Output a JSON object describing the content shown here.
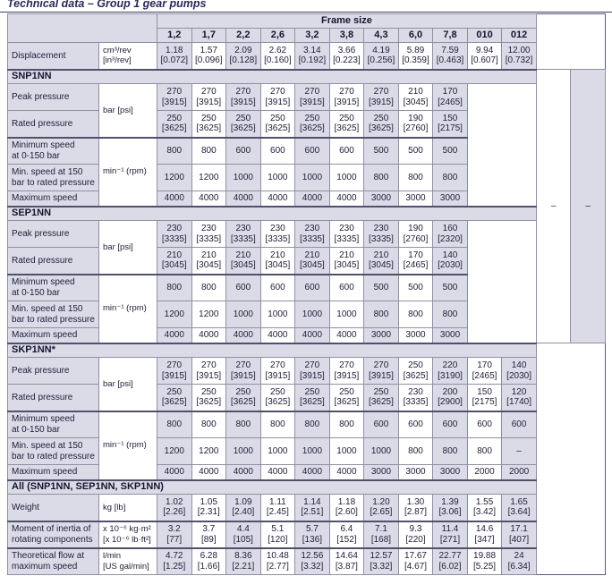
{
  "title": "Technical data – Group 1 gear pumps",
  "table": {
    "frame_size_label": "Frame size",
    "columns": [
      "1,2",
      "1,7",
      "2,2",
      "2,6",
      "3,2",
      "3,8",
      "4,3",
      "6,0",
      "7,8",
      "010",
      "012"
    ],
    "na_value": "–",
    "na_rowspan": 12,
    "displacement": {
      "label": "Displacement",
      "unit": "cm³/rev\n[in³/rev]",
      "values": [
        "1.18\n[0.072]",
        "1.57\n[0.096]",
        "2.09\n[0.128]",
        "2.62\n[0.160]",
        "3.14\n[0.192]",
        "3.66\n[0.223]",
        "4.19\n[0.256]",
        "5.89\n[0.359]",
        "7.59\n[0.463]",
        "9.94\n[0.607]",
        "12.00\n[0.732]"
      ]
    },
    "sections": [
      {
        "name": "SNP1NN",
        "spans_full": false,
        "attach_na": true,
        "rows": [
          {
            "label": "Peak pressure",
            "unit": "bar [psi]",
            "unit_rows": 2,
            "values": [
              "270\n[3915]",
              "270\n[3915]",
              "270\n[3915]",
              "270\n[3915]",
              "270\n[3915]",
              "270\n[3915]",
              "270\n[3915]",
              "210\n[3045]",
              "170\n[2465]"
            ]
          },
          {
            "label": "Rated pressure",
            "values": [
              "250\n[3625]",
              "250\n[3625]",
              "250\n[3625]",
              "250\n[3625]",
              "250\n[3625]",
              "250\n[3625]",
              "250\n[3625]",
              "190\n[2760]",
              "150\n[2175]"
            ]
          },
          {
            "label": "Minimum speed\nat 0-150 bar",
            "unit": "min⁻¹ (rpm)",
            "unit_rows": 3,
            "group": true,
            "values": [
              "800",
              "800",
              "600",
              "600",
              "600",
              "600",
              "500",
              "500",
              "500"
            ]
          },
          {
            "label": "Min. speed at 150\nbar to rated pressure",
            "values": [
              "1200",
              "1200",
              "1000",
              "1000",
              "1000",
              "1000",
              "800",
              "800",
              "800"
            ]
          },
          {
            "label": "Maximum speed",
            "short": true,
            "values": [
              "4000",
              "4000",
              "4000",
              "4000",
              "4000",
              "4000",
              "3000",
              "3000",
              "3000"
            ]
          }
        ]
      },
      {
        "name": "SEP1NN",
        "spans_full": false,
        "rows": [
          {
            "label": "Peak pressure",
            "unit": "bar [psi]",
            "unit_rows": 2,
            "values": [
              "230\n[3335]",
              "230\n[3335]",
              "230\n[3335]",
              "230\n[3335]",
              "230\n[3335]",
              "230\n[3335]",
              "230\n[3335]",
              "190\n[2760]",
              "160\n[2320]"
            ]
          },
          {
            "label": "Rated pressure",
            "values": [
              "210\n[3045]",
              "210\n[3045]",
              "210\n[3045]",
              "210\n[3045]",
              "210\n[3045]",
              "210\n[3045]",
              "210\n[3045]",
              "170\n[2465]",
              "140\n[2030]"
            ]
          },
          {
            "label": "Minimum speed\nat 0-150 bar",
            "unit": "min⁻¹ (rpm)",
            "unit_rows": 3,
            "group": true,
            "values": [
              "800",
              "800",
              "600",
              "600",
              "600",
              "600",
              "500",
              "500",
              "500"
            ]
          },
          {
            "label": "Min. speed at 150\nbar to rated pressure",
            "values": [
              "1200",
              "1200",
              "1000",
              "1000",
              "1000",
              "1000",
              "800",
              "800",
              "800"
            ]
          },
          {
            "label": "Maximum speed",
            "short": true,
            "values": [
              "4000",
              "4000",
              "4000",
              "4000",
              "4000",
              "4000",
              "3000",
              "3000",
              "3000"
            ]
          }
        ]
      },
      {
        "name": "SKP1NN*",
        "spans_full": true,
        "rows": [
          {
            "label": "Peak pressure",
            "unit": "bar [psi]",
            "unit_rows": 2,
            "values": [
              "270\n[3915]",
              "270\n[3915]",
              "270\n[3915]",
              "270\n[3915]",
              "270\n[3915]",
              "270\n[3915]",
              "270\n[3915]",
              "250\n[3625]",
              "220\n[3190]",
              "170\n[2465]",
              "140\n[2030]"
            ]
          },
          {
            "label": "Rated pressure",
            "values": [
              "250\n[3625]",
              "250\n[3625]",
              "250\n[3625]",
              "250\n[3625]",
              "250\n[3625]",
              "250\n[3625]",
              "250\n[3625]",
              "230\n[3335]",
              "200\n[2900]",
              "150\n[2175]",
              "120\n[1740]"
            ]
          },
          {
            "label": "Minimum speed\nat 0-150 bar",
            "unit": "min⁻¹ (rpm)",
            "unit_rows": 3,
            "group": true,
            "values": [
              "800",
              "800",
              "800",
              "800",
              "800",
              "800",
              "600",
              "600",
              "600",
              "600",
              "600"
            ]
          },
          {
            "label": "Min. speed at 150\nbar to rated pressure",
            "values": [
              "1200",
              "1200",
              "1000",
              "1000",
              "1000",
              "1000",
              "1000",
              "800",
              "800",
              "800",
              "–"
            ]
          },
          {
            "label": "Maximum speed",
            "short": true,
            "values": [
              "4000",
              "4000",
              "4000",
              "4000",
              "4000",
              "4000",
              "3000",
              "3000",
              "3000",
              "2000",
              "2000"
            ]
          }
        ]
      },
      {
        "name": "All (SNP1NN, SEP1NN, SKP1NN)",
        "spans_full": true,
        "rows": [
          {
            "label": "Weight",
            "unit": "kg [lb]",
            "unit_rows": 1,
            "values": [
              "1.02\n[2.26]",
              "1.05\n[2.31]",
              "1.09\n[2.40]",
              "1.11\n[2.45]",
              "1.14\n[2.51]",
              "1.18\n[2.60]",
              "1.20\n[2.65]",
              "1.30\n[2.87]",
              "1.39\n[3.06]",
              "1.55\n[3.42]",
              "1.65\n[3.64]"
            ]
          },
          {
            "label": "Moment of inertia of\nrotating components",
            "unit": "x 10⁻⁶ kg·m²\n[x 10⁻⁶ lb·ft²]",
            "unit_rows": 1,
            "group": true,
            "values": [
              "3.2\n[77]",
              "3.7\n[89]",
              "4.4\n[105]",
              "5.1\n[120]",
              "5.7\n[136]",
              "6.4\n[152]",
              "7.1\n[168]",
              "9.3\n[220]",
              "11.4\n[271]",
              "14.6\n[347]",
              "17.1\n[407]"
            ]
          },
          {
            "label": "Theoretical flow at\nmaximum speed",
            "unit": "l/min\n[US gal/min]",
            "unit_rows": 1,
            "group": true,
            "values": [
              "4.72\n[1.25]",
              "6.28\n[1.66]",
              "8.36\n[2.21]",
              "10.48\n[2.77]",
              "12.56\n[3.32]",
              "14.64\n[3.87]",
              "12.57\n[3.32]",
              "17.67\n[4.67]",
              "22.77\n[6.02]",
              "19.88\n[5.25]",
              "24\n[6.34]"
            ]
          }
        ]
      }
    ]
  }
}
